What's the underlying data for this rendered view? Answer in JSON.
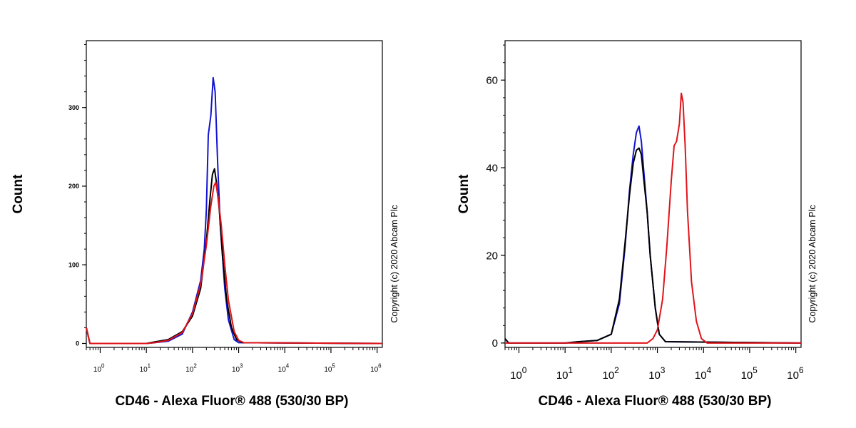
{
  "chart_data": [
    {
      "type": "line",
      "title": "",
      "xlabel": "CD46 - Alexa Fluor® 488 (530/30 BP)",
      "ylabel": "Count",
      "x_scale": "log",
      "xlim": [
        0.5,
        1300000
      ],
      "ylim": [
        -5,
        385
      ],
      "x_ticks": [
        1,
        10,
        100,
        1000,
        10000,
        100000,
        1000000
      ],
      "x_tick_labels": [
        {
          "base": "10",
          "exp": "0"
        },
        {
          "base": "10",
          "exp": "1"
        },
        {
          "base": "10",
          "exp": "2"
        },
        {
          "base": "10",
          "exp": "3"
        },
        {
          "base": "10",
          "exp": "4"
        },
        {
          "base": "10",
          "exp": "5"
        },
        {
          "base": "10",
          "exp": "6"
        }
      ],
      "y_ticks": [
        0,
        100,
        200,
        300
      ],
      "y_tick_labels": [
        "0",
        "100",
        "200",
        "300"
      ],
      "y_tick_label_size": 9,
      "annotation": "Copyright (c) 2020 Abcam Plc",
      "grid": false,
      "series": [
        {
          "color": "#1414d2",
          "points": [
            [
              0.5,
              20
            ],
            [
              0.6,
              0
            ],
            [
              10,
              0
            ],
            [
              15,
              1
            ],
            [
              30,
              3
            ],
            [
              60,
              12
            ],
            [
              100,
              40
            ],
            [
              150,
              80
            ],
            [
              180,
              120
            ],
            [
              200,
              170
            ],
            [
              220,
              265
            ],
            [
              250,
              290
            ],
            [
              280,
              338
            ],
            [
              310,
              320
            ],
            [
              350,
              230
            ],
            [
              400,
              150
            ],
            [
              500,
              70
            ],
            [
              600,
              30
            ],
            [
              800,
              5
            ],
            [
              1000,
              1
            ],
            [
              1300000,
              0
            ]
          ]
        },
        {
          "color": "#000000",
          "points": [
            [
              0.5,
              20
            ],
            [
              0.6,
              0
            ],
            [
              10,
              0
            ],
            [
              15,
              2
            ],
            [
              30,
              5
            ],
            [
              60,
              15
            ],
            [
              100,
              35
            ],
            [
              150,
              70
            ],
            [
              200,
              130
            ],
            [
              240,
              185
            ],
            [
              270,
              215
            ],
            [
              300,
              222
            ],
            [
              330,
              205
            ],
            [
              380,
              170
            ],
            [
              450,
              110
            ],
            [
              550,
              55
            ],
            [
              700,
              20
            ],
            [
              900,
              5
            ],
            [
              1200,
              1
            ],
            [
              1300000,
              0
            ]
          ]
        },
        {
          "color": "#e0141a",
          "points": [
            [
              0.5,
              20
            ],
            [
              0.6,
              0
            ],
            [
              10,
              0
            ],
            [
              15,
              1
            ],
            [
              30,
              4
            ],
            [
              60,
              14
            ],
            [
              100,
              38
            ],
            [
              150,
              75
            ],
            [
              200,
              125
            ],
            [
              250,
              175
            ],
            [
              290,
              200
            ],
            [
              320,
              205
            ],
            [
              360,
              185
            ],
            [
              420,
              150
            ],
            [
              500,
              100
            ],
            [
              600,
              55
            ],
            [
              800,
              15
            ],
            [
              1000,
              4
            ],
            [
              1300,
              1
            ],
            [
              1300000,
              0
            ]
          ]
        }
      ]
    },
    {
      "type": "line",
      "title": "",
      "xlabel": "CD46 - Alexa Fluor® 488 (530/30 BP)",
      "ylabel": "Count",
      "x_scale": "log",
      "xlim": [
        0.5,
        1300000
      ],
      "ylim": [
        -1,
        69
      ],
      "x_ticks": [
        1,
        10,
        100,
        1000,
        10000,
        100000,
        1000000
      ],
      "x_tick_labels": [
        {
          "base": "10",
          "exp": "0"
        },
        {
          "base": "10",
          "exp": "1"
        },
        {
          "base": "10",
          "exp": "2"
        },
        {
          "base": "10",
          "exp": "3"
        },
        {
          "base": "10",
          "exp": "4"
        },
        {
          "base": "10",
          "exp": "5"
        },
        {
          "base": "10",
          "exp": "6"
        }
      ],
      "y_ticks": [
        0,
        20,
        40,
        60
      ],
      "y_tick_labels": [
        "0",
        "20",
        "40",
        "60"
      ],
      "y_tick_label_size": 15,
      "annotation": "Copyright (c) 2020 Abcam Plc",
      "grid": false,
      "series": [
        {
          "color": "#1414d2",
          "points": [
            [
              0.5,
              1
            ],
            [
              0.6,
              0
            ],
            [
              10,
              0
            ],
            [
              20,
              0.3
            ],
            [
              50,
              0.6
            ],
            [
              100,
              2
            ],
            [
              150,
              9
            ],
            [
              200,
              22
            ],
            [
              250,
              35
            ],
            [
              300,
              43
            ],
            [
              350,
              48
            ],
            [
              400,
              49.5
            ],
            [
              450,
              46
            ],
            [
              500,
              40
            ],
            [
              600,
              30
            ],
            [
              700,
              20
            ],
            [
              900,
              8
            ],
            [
              1100,
              2
            ],
            [
              1500,
              0.3
            ],
            [
              1300000,
              0
            ]
          ]
        },
        {
          "color": "#000000",
          "points": [
            [
              0.5,
              1
            ],
            [
              0.6,
              0
            ],
            [
              10,
              0
            ],
            [
              20,
              0.3
            ],
            [
              50,
              0.6
            ],
            [
              100,
              2
            ],
            [
              150,
              10
            ],
            [
              200,
              23
            ],
            [
              250,
              34
            ],
            [
              300,
              41
            ],
            [
              350,
              44
            ],
            [
              400,
              44.5
            ],
            [
              450,
              43
            ],
            [
              500,
              38
            ],
            [
              600,
              30
            ],
            [
              700,
              20
            ],
            [
              900,
              8
            ],
            [
              1100,
              2
            ],
            [
              1500,
              0.3
            ],
            [
              1300000,
              0
            ]
          ]
        },
        {
          "color": "#e0141a",
          "points": [
            [
              0.5,
              0
            ],
            [
              100,
              0
            ],
            [
              600,
              0
            ],
            [
              800,
              1
            ],
            [
              1000,
              3
            ],
            [
              1300,
              10
            ],
            [
              1600,
              22
            ],
            [
              2000,
              37
            ],
            [
              2300,
              45
            ],
            [
              2600,
              46
            ],
            [
              3000,
              50
            ],
            [
              3300,
              57
            ],
            [
              3600,
              55
            ],
            [
              4000,
              45
            ],
            [
              4500,
              30
            ],
            [
              5500,
              14
            ],
            [
              7000,
              5
            ],
            [
              9000,
              1
            ],
            [
              12000,
              0
            ],
            [
              1300000,
              0
            ]
          ]
        }
      ]
    }
  ]
}
